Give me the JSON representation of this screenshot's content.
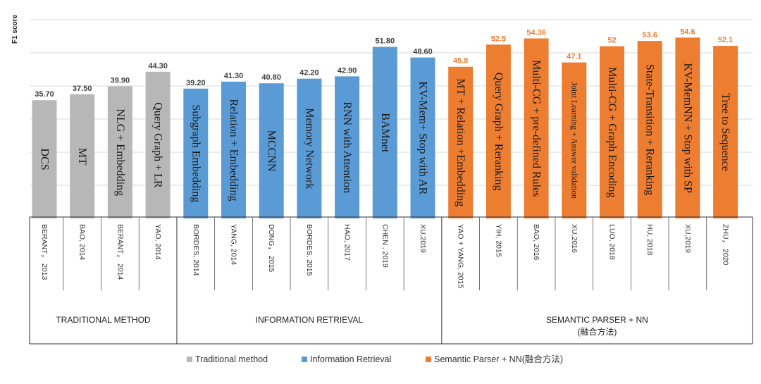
{
  "chart_data": {
    "type": "bar",
    "ylabel": "F1 score",
    "ylim": [
      0,
      60
    ],
    "grid": true,
    "legend_position": "bottom",
    "colors": {
      "traditional": "#b7b7b7",
      "ir": "#5b9bd5",
      "sp": "#ed7d31"
    },
    "series": [
      {
        "name": "Traditional method",
        "key": "traditional"
      },
      {
        "name": "Information Retrieval",
        "key": "ir"
      },
      {
        "name": "Semantic Parser + NN(融合方法)",
        "key": "sp"
      }
    ],
    "groups": [
      {
        "label": "TRADITIONAL METHOD",
        "sublabel": "",
        "key": "traditional"
      },
      {
        "label": "INFORMATION RETRIEVAL",
        "sublabel": "",
        "key": "ir"
      },
      {
        "label": "SEMANTIC PARSER + NN",
        "sublabel": "(融合方法)",
        "key": "sp"
      }
    ],
    "bars": [
      {
        "method": "DCS",
        "source": "BERANT， 2013",
        "value": 35.7,
        "value_label": "35.70",
        "group": "traditional"
      },
      {
        "method": "MT",
        "source": "BAO, 2014",
        "value": 37.5,
        "value_label": "37.50",
        "group": "traditional"
      },
      {
        "method": "NLG + Embedding",
        "source": "BERANT， 2014",
        "value": 39.9,
        "value_label": "39.90",
        "group": "traditional"
      },
      {
        "method": "Query Graph + LR",
        "source": "YAO, 2014",
        "value": 44.3,
        "value_label": "44.30",
        "group": "traditional"
      },
      {
        "method": "Subgraph Embedding",
        "source": "BORDES, 2014",
        "value": 39.2,
        "value_label": "39.20",
        "group": "ir"
      },
      {
        "method": "Relation + Embedding",
        "source": "YANG, 2014",
        "value": 41.3,
        "value_label": "41.30",
        "group": "ir"
      },
      {
        "method": "MCCNN",
        "source": "DONG， 2015",
        "value": 40.8,
        "value_label": "40.80",
        "group": "ir"
      },
      {
        "method": "Memory Network",
        "source": "BORDES, 2015",
        "value": 42.2,
        "value_label": "42.20",
        "group": "ir"
      },
      {
        "method": "RNN with Attention",
        "source": "HAO, 2017",
        "value": 42.9,
        "value_label": "42.90",
        "group": "ir"
      },
      {
        "method": "BAMnet",
        "source": "CHEN , 2019",
        "value": 51.8,
        "value_label": "51.80",
        "group": "ir"
      },
      {
        "method": "KV-Mem+ Stop  with AR",
        "source": "XU,2019",
        "value": 48.6,
        "value_label": "48.60",
        "group": "ir"
      },
      {
        "method": "MT + Relation +Embedding",
        "source": "YAO + YANG, 2015",
        "value": 45.8,
        "value_label": "45.8",
        "group": "sp"
      },
      {
        "method": "Query Graph + Reranking",
        "source": "YIH, 2015",
        "value": 52.5,
        "value_label": "52.5",
        "group": "sp"
      },
      {
        "method": "Multi-CG + pre-defined Rules",
        "source": "BAO, 2016",
        "value": 54.36,
        "value_label": "54.36",
        "group": "sp"
      },
      {
        "method": "Joint Learning + Answer validation",
        "source": "XU,2016",
        "value": 47.1,
        "value_label": "47.1",
        "group": "sp"
      },
      {
        "method": "Multi-CG + Graph Encoding",
        "source": "LUO, 2018",
        "value": 52,
        "value_label": "52",
        "group": "sp"
      },
      {
        "method": "State-Transition + Reranking",
        "source": "HU, 2018",
        "value": 53.6,
        "value_label": "53.6",
        "group": "sp"
      },
      {
        "method": "KV-MemNN + Stop with SP",
        "source": "XU,2019",
        "value": 54.6,
        "value_label": "54.6",
        "group": "sp"
      },
      {
        "method": "Tree to Sequence",
        "source": "ZHU， 2020",
        "value": 52.1,
        "value_label": "52.1",
        "group": "sp"
      }
    ]
  }
}
